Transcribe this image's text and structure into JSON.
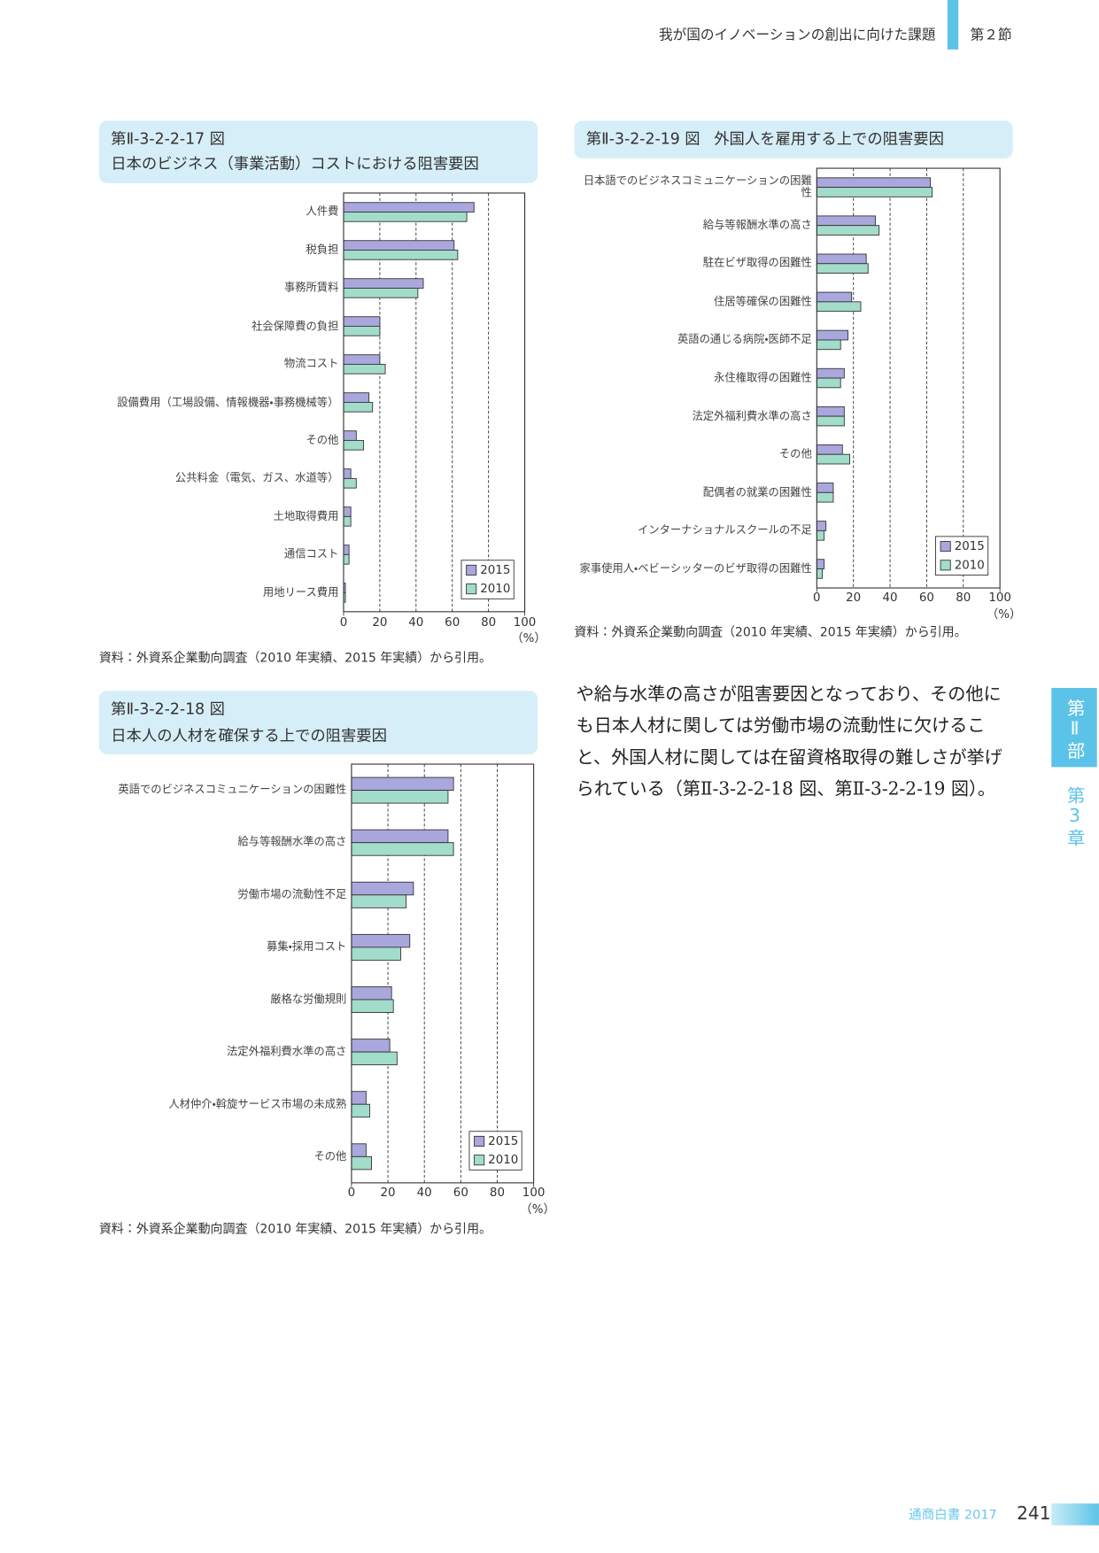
{
  "header": {
    "section_title": "我が国のイノベーションの創出に向けた課題",
    "section": "第２節"
  },
  "chart_data": [
    {
      "type": "bar",
      "orientation": "horizontal",
      "number": "第Ⅱ-3-2-2-17 図",
      "title": "日本のビジネス（事業活動）コストにおける阻害要因",
      "categories": [
        "人件費",
        "税負担",
        "事務所賃料",
        "社会保障費の負担",
        "物流コスト",
        "設備費用（工場設備、情報機器・事務機械等）",
        "その他",
        "公共料金（電気、ガス、水道等）",
        "土地取得費用",
        "通信コスト",
        "用地リース費用"
      ],
      "series": [
        {
          "name": "2015",
          "color": "#aaa7dd",
          "values": [
            72,
            61,
            44,
            20,
            20,
            14,
            7,
            4,
            4,
            3,
            1
          ]
        },
        {
          "name": "2010",
          "color": "#a2dccb",
          "values": [
            68,
            63,
            41,
            20,
            23,
            16,
            11,
            7,
            4,
            3,
            1
          ]
        }
      ],
      "xlim": [
        0,
        100
      ],
      "xticks": [
        0,
        20,
        40,
        60,
        80,
        100
      ],
      "x_unit": "（%）",
      "grid": true,
      "legend": "lower right",
      "source": "資料：外資系企業動向調査（2010 年実績、2015 年実績）から引用。"
    },
    {
      "type": "bar",
      "orientation": "horizontal",
      "number": "第Ⅱ-3-2-2-18 図",
      "title": "日本人の人材を確保する上での阻害要因",
      "categories": [
        "英語でのビジネスコミュニケーションの困難性",
        "給与等報酬水準の高さ",
        "労働市場の流動性不足",
        "募集・採用コスト",
        "厳格な労働規則",
        "法定外福利費水準の高さ",
        "人材仲介・斡旋サービス市場の未成熟",
        "その他"
      ],
      "series": [
        {
          "name": "2015",
          "color": "#aaa7dd",
          "values": [
            56,
            53,
            34,
            32,
            22,
            21,
            8,
            8
          ]
        },
        {
          "name": "2010",
          "color": "#a2dccb",
          "values": [
            53,
            56,
            30,
            27,
            23,
            25,
            10,
            11
          ]
        }
      ],
      "xlim": [
        0,
        100
      ],
      "xticks": [
        0,
        20,
        40,
        60,
        80,
        100
      ],
      "x_unit": "（%）",
      "grid": true,
      "legend": "lower right",
      "source": "資料：外資系企業動向調査（2010 年実績、2015 年実績）から引用。"
    },
    {
      "type": "bar",
      "orientation": "horizontal",
      "number": "第Ⅱ-3-2-2-19 図",
      "title": "外国人を雇用する上での阻害要因",
      "categories": [
        "日本語でのビジネスコミュニケーションの困難性",
        "給与等報酬水準の高さ",
        "駐在ビザ取得の困難性",
        "住居等確保の困難性",
        "英語の通じる病院・医師不足",
        "永住権取得の困難性",
        "法定外福利費水準の高さ",
        "その他",
        "配偶者の就業の困難性",
        "インターナショナルスクールの不足",
        "家事使用人・ベビーシッターのビザ取得の困難性"
      ],
      "series": [
        {
          "name": "2015",
          "color": "#aaa7dd",
          "values": [
            62,
            32,
            27,
            19,
            17,
            15,
            15,
            14,
            9,
            5,
            4
          ]
        },
        {
          "name": "2010",
          "color": "#a2dccb",
          "values": [
            63,
            34,
            28,
            24,
            13,
            13,
            15,
            18,
            9,
            4,
            3
          ]
        }
      ],
      "xlim": [
        0,
        100
      ],
      "xticks": [
        0,
        20,
        40,
        60,
        80,
        100
      ],
      "x_unit": "（%）",
      "grid": true,
      "legend": "lower right",
      "source": "資料：外資系企業動向調査（2010 年実績、2015 年実績）から引用。"
    }
  ],
  "body": {
    "paragraph": "や給与水準の高さが阻害要因となっており、その他にも日本人材に関しては労働市場の流動性に欠けること、外国人材に関しては在留資格取得の難しさが挙げられている（第Ⅱ-3-2-2-18 図、第Ⅱ-3-2-2-19 図）。"
  },
  "side_tab": {
    "part": "第Ⅱ部",
    "chapter": "第3章"
  },
  "footer": {
    "publication": "通商白書 2017",
    "page": "241"
  }
}
